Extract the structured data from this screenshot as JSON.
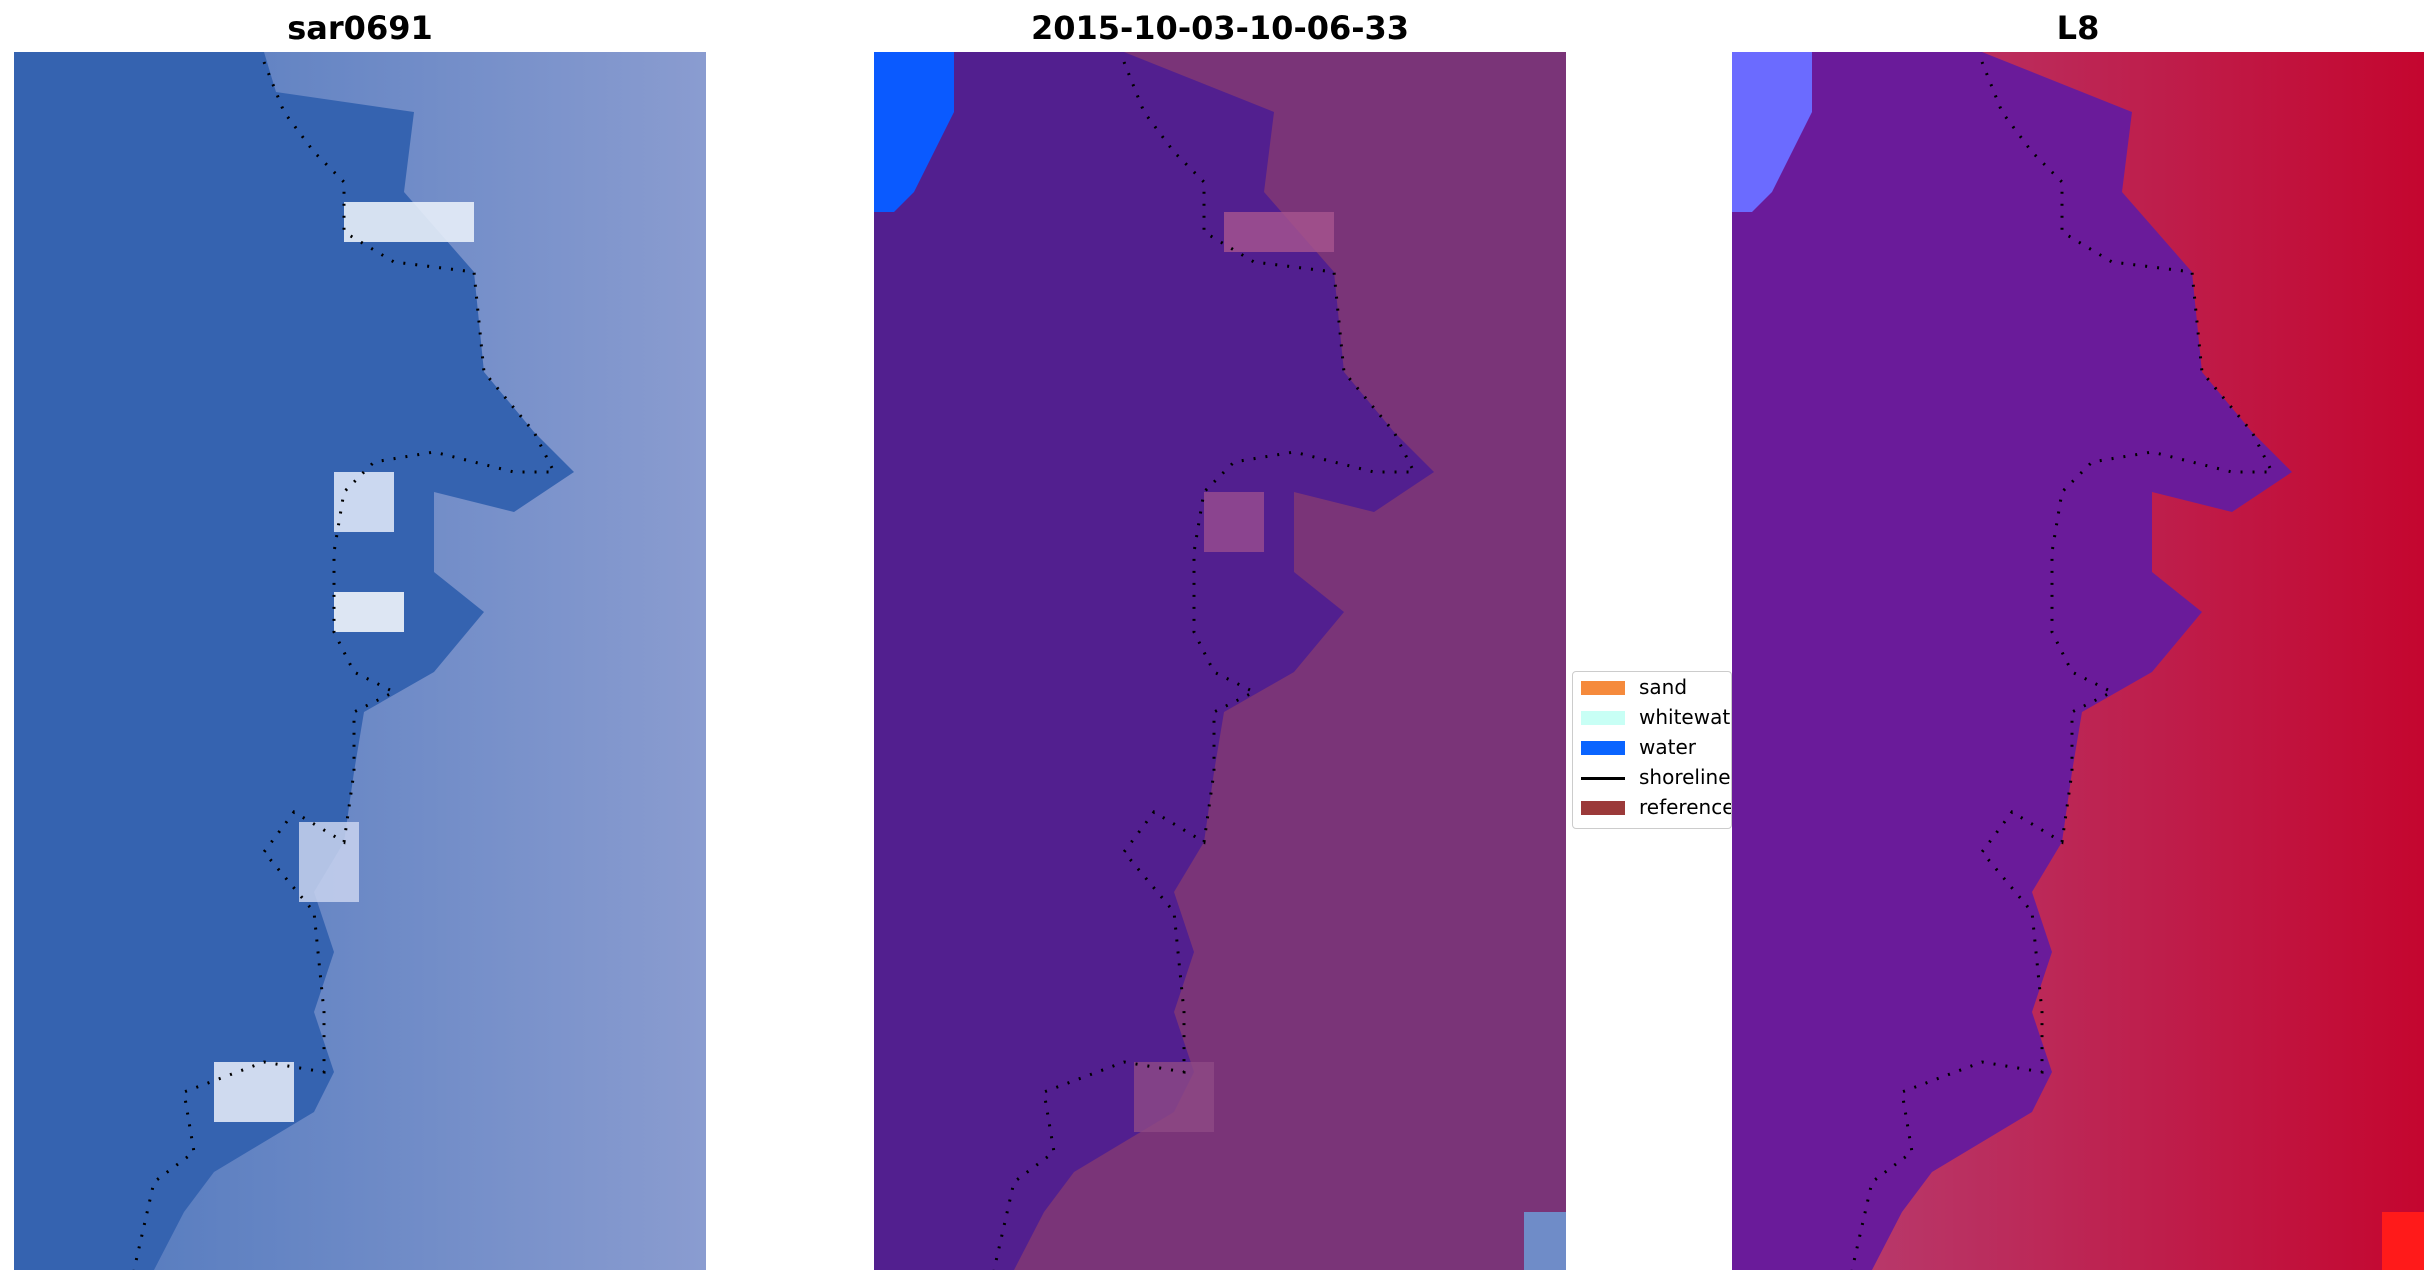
{
  "panels": [
    {
      "title": "sar0691",
      "kind": "rgb"
    },
    {
      "title": "2015-10-03-10-06-33",
      "kind": "classified"
    },
    {
      "title": "L8",
      "kind": "index"
    }
  ],
  "legend": {
    "items": [
      {
        "label": "sand",
        "color": "#f58a3c",
        "type": "patch"
      },
      {
        "label": "whitewater",
        "color": "#c8fff5",
        "type": "patch"
      },
      {
        "label": "water",
        "color": "#0a64ff",
        "type": "patch"
      },
      {
        "label": "shoreline",
        "color": "#000000",
        "type": "line"
      },
      {
        "label": "reference",
        "color": "#9b3a3a",
        "type": "patch"
      }
    ]
  },
  "colors": {
    "rgb_water": "#3563b0",
    "rgb_land": "#7389c0",
    "rgb_whitewater": "#e8eef8",
    "class_water": "#521f8f",
    "class_land": "#7a3478",
    "class_bright_water": "#0a5aff",
    "index_water": "#6a1b9a",
    "index_land": "#c41340",
    "index_corner": "#6b6bff"
  }
}
